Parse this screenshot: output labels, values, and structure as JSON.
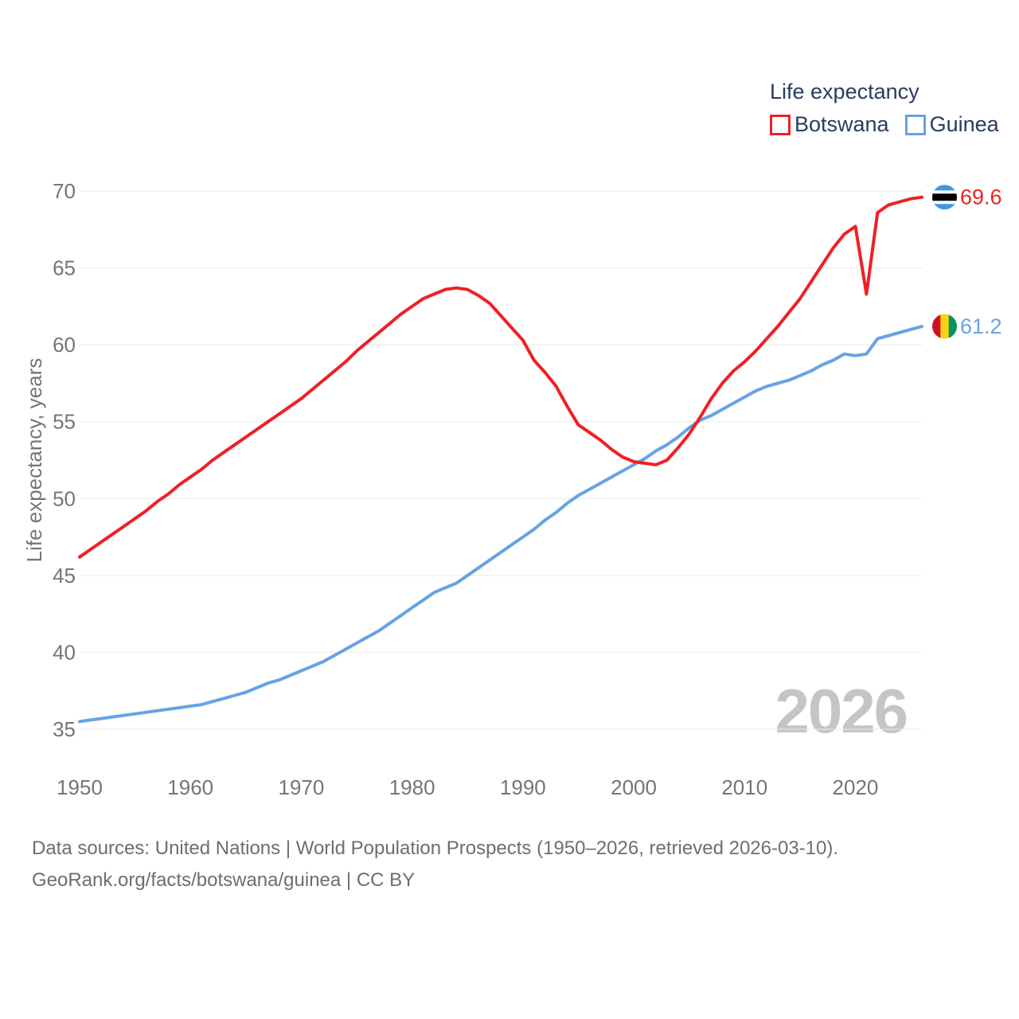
{
  "page": {
    "background": "#ffffff"
  },
  "legend": {
    "title": "Life expectancy",
    "items": [
      {
        "label": "Botswana",
        "color": "#ee2025"
      },
      {
        "label": "Guinea",
        "color": "#66a3e3"
      }
    ]
  },
  "watermark": "2026",
  "footer": {
    "line1": "Data sources: United Nations | World Population Prospects (1950–2026, retrieved 2026-03-10).",
    "line2": "GeoRank.org/facts/botswana/guinea | CC BY"
  },
  "chart_data": {
    "type": "line",
    "title": "Life expectancy",
    "xlabel": "",
    "ylabel": "Life expectancy, years",
    "x_range": [
      1950,
      2026
    ],
    "ylim": [
      35,
      70
    ],
    "y_ticks": [
      35,
      40,
      45,
      50,
      55,
      60,
      65,
      70
    ],
    "x_ticks": [
      1950,
      1960,
      1970,
      1980,
      1990,
      2000,
      2010,
      2020
    ],
    "grid": true,
    "grid_color": "#e9e9e9",
    "axis_color": "#757575",
    "legend_position": "top-right",
    "series": [
      {
        "name": "Botswana",
        "color": "#ee2025",
        "end_label": "69.6",
        "flag": {
          "type": "botswana",
          "colors": [
            "#3d96e8",
            "#ffffff",
            "#000000"
          ]
        },
        "values": [
          46.2,
          46.7,
          47.2,
          47.7,
          48.2,
          48.7,
          49.2,
          49.8,
          50.3,
          50.9,
          51.4,
          51.9,
          52.5,
          53.0,
          53.5,
          54.0,
          54.5,
          55.0,
          55.5,
          56.0,
          56.5,
          57.1,
          57.7,
          58.3,
          58.9,
          59.6,
          60.2,
          60.8,
          61.4,
          62.0,
          62.5,
          63.0,
          63.3,
          63.6,
          63.7,
          63.6,
          63.2,
          62.7,
          61.9,
          61.1,
          60.3,
          59.0,
          58.2,
          57.3,
          56.0,
          54.8,
          54.3,
          53.8,
          53.2,
          52.7,
          52.4,
          52.3,
          52.2,
          52.5,
          53.3,
          54.2,
          55.3,
          56.5,
          57.5,
          58.3,
          58.9,
          59.6,
          60.4,
          61.2,
          62.1,
          63.0,
          64.1,
          65.2,
          66.3,
          67.2,
          67.7,
          63.3,
          68.6,
          69.1,
          69.3,
          69.5,
          69.6
        ]
      },
      {
        "name": "Guinea",
        "color": "#66a3e3",
        "end_label": "61.2",
        "flag": {
          "type": "guinea",
          "colors": [
            "#ce1126",
            "#fcd116",
            "#009460"
          ]
        },
        "values": [
          35.5,
          35.6,
          35.7,
          35.8,
          35.9,
          36.0,
          36.1,
          36.2,
          36.3,
          36.4,
          36.5,
          36.6,
          36.8,
          37.0,
          37.2,
          37.4,
          37.7,
          38.0,
          38.2,
          38.5,
          38.8,
          39.1,
          39.4,
          39.8,
          40.2,
          40.6,
          41.0,
          41.4,
          41.9,
          42.4,
          42.9,
          43.4,
          43.9,
          44.2,
          44.5,
          45.0,
          45.5,
          46.0,
          46.5,
          47.0,
          47.5,
          48.0,
          48.6,
          49.1,
          49.7,
          50.2,
          50.6,
          51.0,
          51.4,
          51.8,
          52.2,
          52.6,
          53.1,
          53.5,
          54.0,
          54.6,
          55.1,
          55.4,
          55.8,
          56.2,
          56.6,
          57.0,
          57.3,
          57.5,
          57.7,
          58.0,
          58.3,
          58.7,
          59.0,
          59.4,
          59.3,
          59.4,
          60.4,
          60.6,
          60.8,
          61.0,
          61.2
        ]
      }
    ]
  }
}
